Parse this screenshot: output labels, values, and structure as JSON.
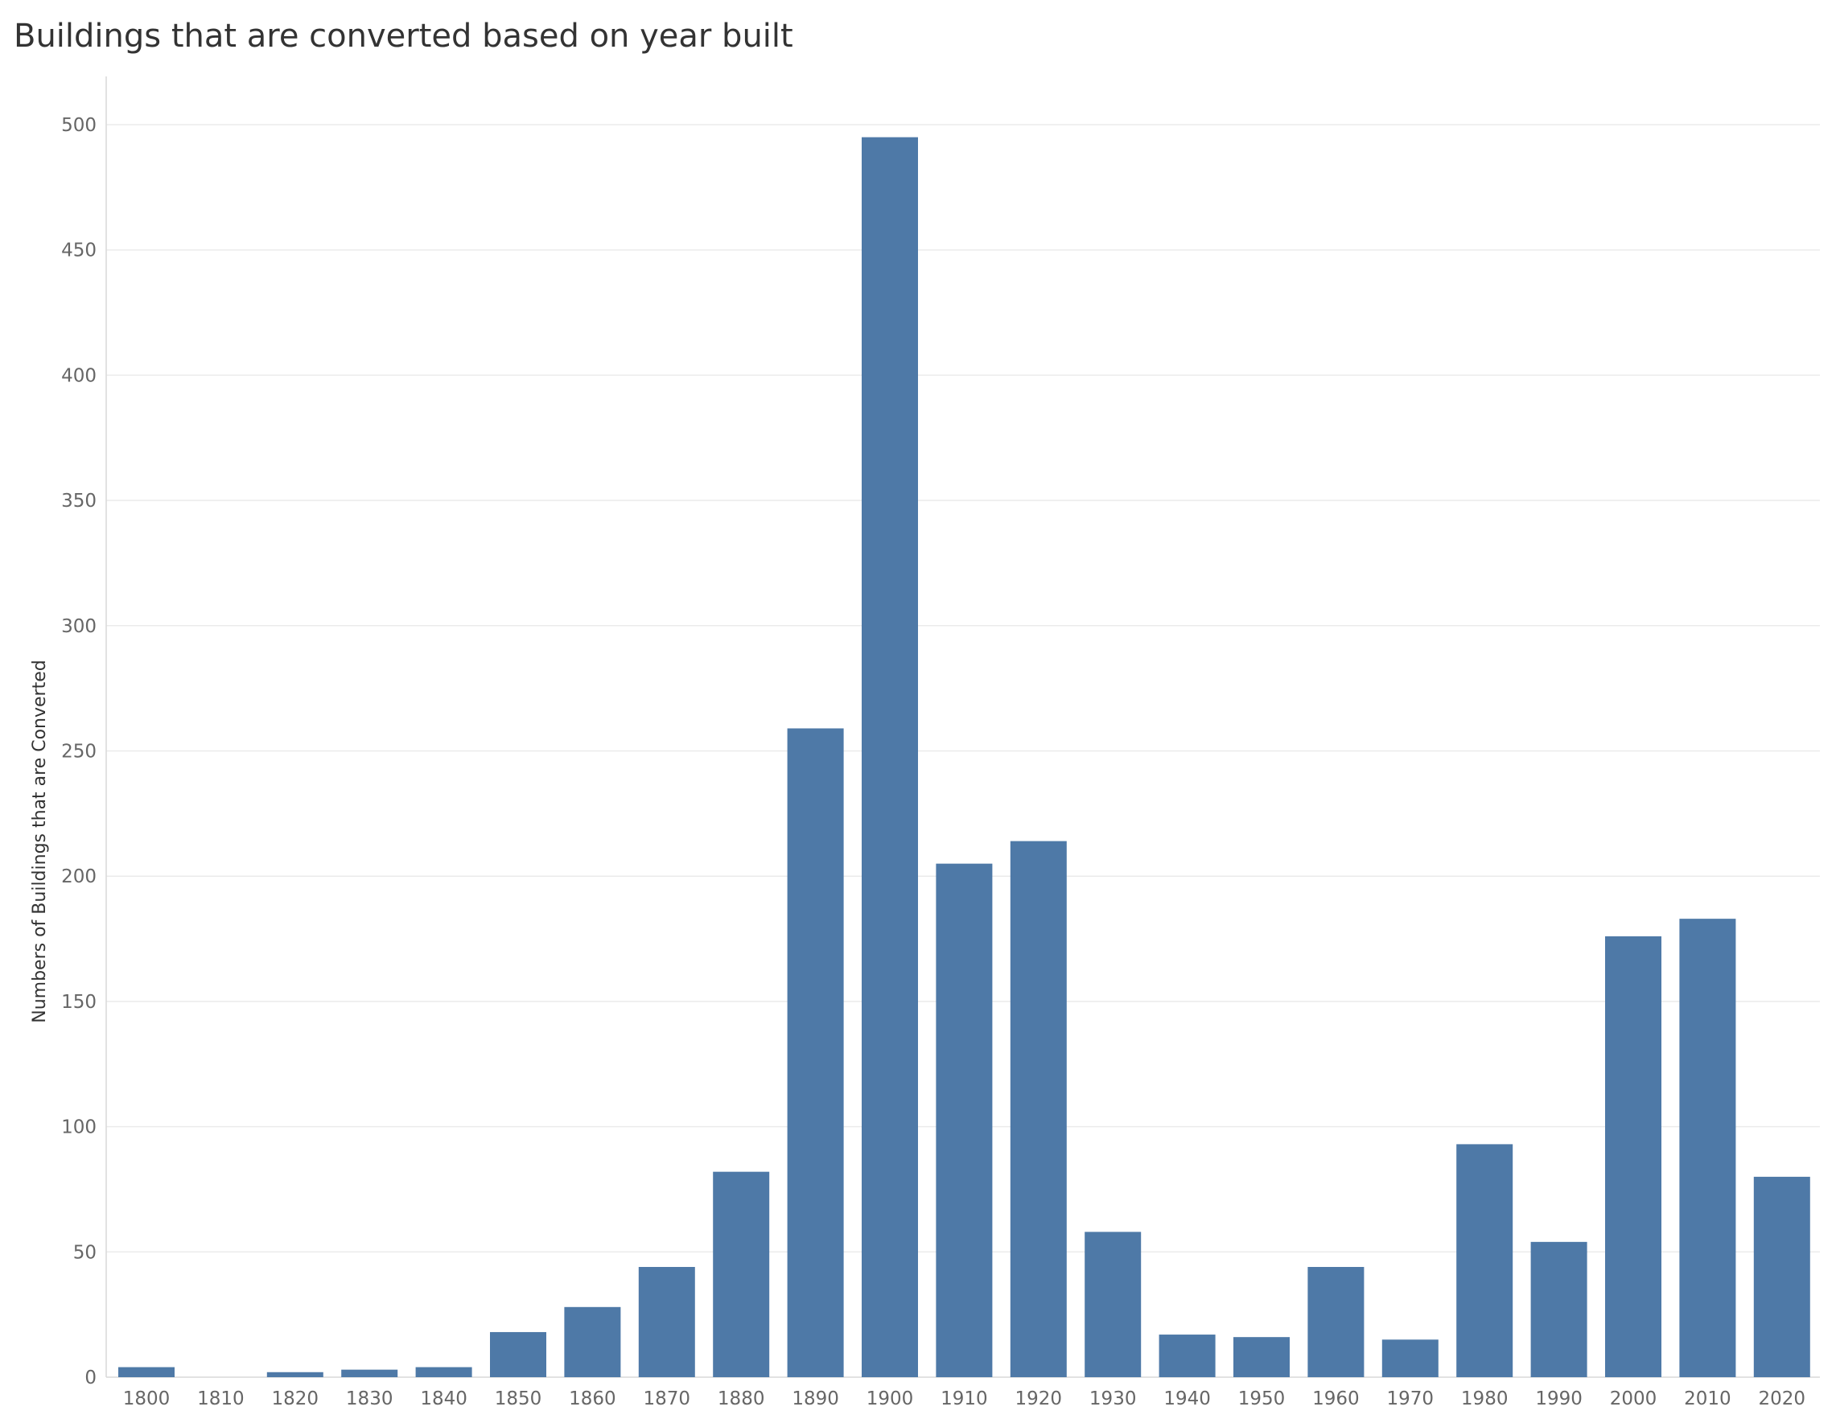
{
  "chart_data": {
    "type": "bar",
    "title": "Buildings that are converted based on year built",
    "xlabel": "",
    "ylabel": "Numbers of Buildings that are Converted",
    "categories": [
      "1800",
      "1810",
      "1820",
      "1830",
      "1840",
      "1850",
      "1860",
      "1870",
      "1880",
      "1890",
      "1900",
      "1910",
      "1920",
      "1930",
      "1940",
      "1950",
      "1960",
      "1970",
      "1980",
      "1990",
      "2000",
      "2010",
      "2020"
    ],
    "values": [
      4,
      0,
      2,
      3,
      4,
      18,
      28,
      44,
      82,
      259,
      495,
      205,
      214,
      58,
      17,
      16,
      44,
      15,
      93,
      54,
      176,
      183,
      80
    ],
    "yticks": [
      0,
      50,
      100,
      150,
      200,
      250,
      300,
      350,
      400,
      450,
      500
    ],
    "ylim": [
      0,
      520
    ],
    "grid": true,
    "colors": {
      "bar": "#4e79a7",
      "grid": "#ebebeb",
      "axis": "#d9d9d9"
    }
  }
}
